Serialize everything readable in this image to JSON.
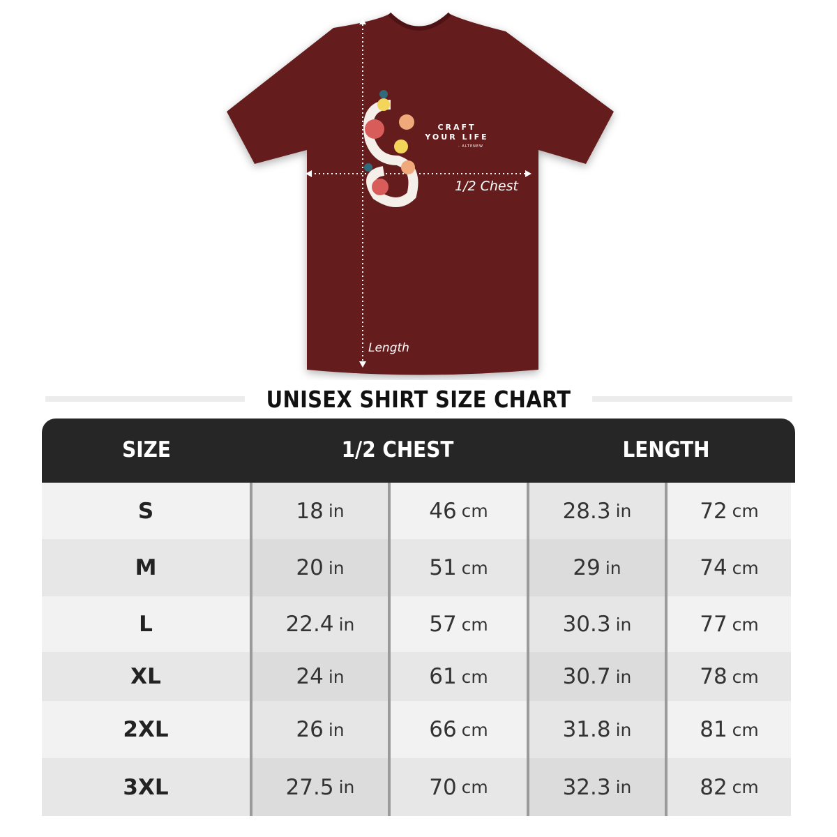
{
  "shirt": {
    "color": "#651a1c",
    "print_text_line1": "CRAFT",
    "print_text_line2": "YOUR LIFE",
    "print_signature": "- ALTENEW",
    "chest_label": "1/2 Chest",
    "length_label": "Length"
  },
  "title": "UNISEX SHIRT SIZE CHART",
  "table": {
    "headers": [
      "SIZE",
      "1/2 CHEST",
      "LENGTH"
    ],
    "rows": [
      {
        "size": "S",
        "chest_in": "18",
        "chest_cm": "46",
        "length_in": "28.3",
        "length_cm": "72"
      },
      {
        "size": "M",
        "chest_in": "20",
        "chest_cm": "51",
        "length_in": "29",
        "length_cm": "74"
      },
      {
        "size": "L",
        "chest_in": "22.4",
        "chest_cm": "57",
        "length_in": "30.3",
        "length_cm": "77"
      },
      {
        "size": "XL",
        "chest_in": "24",
        "chest_cm": "61",
        "length_in": "30.7",
        "length_cm": "78"
      },
      {
        "size": "2XL",
        "chest_in": "26",
        "chest_cm": "66",
        "length_in": "31.8",
        "length_cm": "81"
      },
      {
        "size": "3XL",
        "chest_in": "27.5",
        "chest_cm": "70",
        "length_in": "32.3",
        "length_cm": "82"
      }
    ],
    "unit_in": "in",
    "unit_cm": "cm"
  }
}
